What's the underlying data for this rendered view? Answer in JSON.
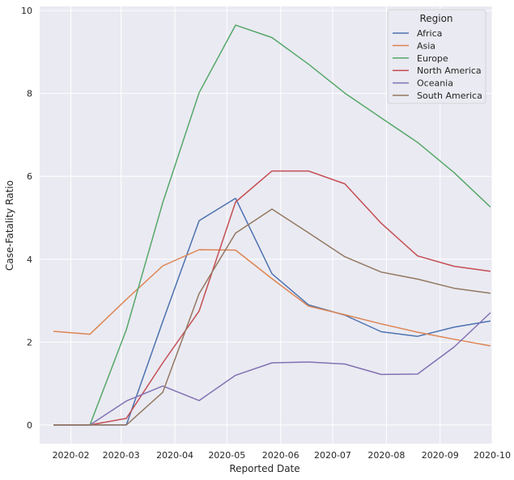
{
  "chart_data": {
    "type": "line",
    "xlabel": "Reported Date",
    "ylabel": "Case-Fatality Ratio",
    "x_ticks": [
      "2020-02",
      "2020-03",
      "2020-04",
      "2020-05",
      "2020-06",
      "2020-07",
      "2020-08",
      "2020-09",
      "2020-10"
    ],
    "y_ticks": [
      0,
      2,
      4,
      6,
      8,
      10
    ],
    "xlim": [
      "2020-01-14",
      "2020-10-01"
    ],
    "ylim": [
      -0.45,
      10.1
    ],
    "grid": true,
    "legend_title": "Region",
    "legend_position": "top-right",
    "x": [
      "2020-01-22",
      "2020-02-12",
      "2020-03-04",
      "2020-03-25",
      "2020-04-15",
      "2020-05-06",
      "2020-05-27",
      "2020-06-17",
      "2020-07-08",
      "2020-07-29",
      "2020-08-19",
      "2020-09-09",
      "2020-09-30"
    ],
    "series": [
      {
        "name": "Africa",
        "color": "#4c72b0",
        "values": [
          0,
          0,
          0,
          2.5,
          4.93,
          5.47,
          3.65,
          2.9,
          2.65,
          2.25,
          2.14,
          2.36,
          2.51
        ]
      },
      {
        "name": "Asia",
        "color": "#dd8452",
        "values": [
          2.26,
          2.19,
          3.03,
          3.84,
          4.23,
          4.22,
          3.53,
          2.87,
          2.66,
          2.44,
          2.24,
          2.07,
          1.91
        ]
      },
      {
        "name": "Europe",
        "color": "#55a868",
        "values": [
          0,
          0,
          2.3,
          5.37,
          8.02,
          9.65,
          9.35,
          8.71,
          8.01,
          7.41,
          6.82,
          6.09,
          5.26
        ]
      },
      {
        "name": "North America",
        "color": "#c44e52",
        "values": [
          0,
          0,
          0.16,
          1.5,
          2.75,
          5.38,
          6.13,
          6.13,
          5.82,
          4.87,
          4.08,
          3.83,
          3.71
        ]
      },
      {
        "name": "Oceania",
        "color": "#8172b3",
        "values": [
          0,
          0,
          0.58,
          0.94,
          0.59,
          1.2,
          1.5,
          1.52,
          1.47,
          1.22,
          1.23,
          1.88,
          2.71
        ]
      },
      {
        "name": "South America",
        "color": "#937860",
        "values": [
          0,
          0,
          0,
          0.79,
          3.17,
          4.63,
          5.21,
          4.64,
          4.06,
          3.69,
          3.52,
          3.3,
          3.18
        ]
      }
    ]
  }
}
